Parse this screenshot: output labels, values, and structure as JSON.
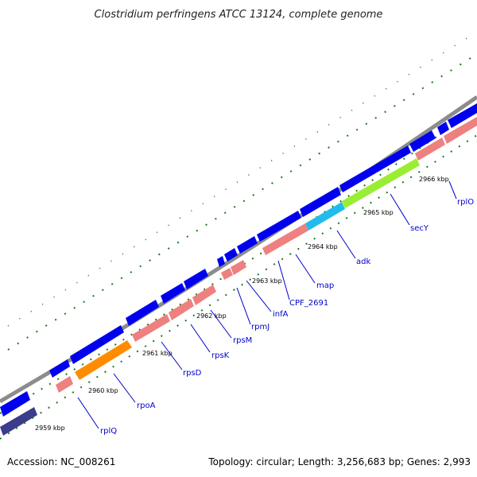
{
  "title": "Clostridium perfringens ATCC 13124, complete genome",
  "footer": {
    "accession": "Accession: NC_008261",
    "summary": "Topology: circular; Length: 3,256,683 bp; Genes: 2,993"
  },
  "tick_labels": [
    "2959 kbp",
    "2960 kbp",
    "2961 kbp",
    "2962 kbp",
    "2963 kbp",
    "2964 kbp",
    "2965 kbp",
    "2966 kbp"
  ],
  "gene_labels": [
    "rplQ",
    "rpoA",
    "rpsD",
    "rpsK",
    "rpsM",
    "rpmJ",
    "infA",
    "CPF_2691",
    "map",
    "adk",
    "secY",
    "rplO"
  ],
  "colors": {
    "backbone": "#8c8c8c",
    "cds_outer": "#0000ee",
    "rrna_pink": "#ee8080",
    "rpoA_orange": "#ff8c00",
    "adk_cyan": "#22bbee",
    "secY_green": "#99ee33",
    "dark_gene": "#3c3c8c",
    "tick_green": "#1a7a1a",
    "label_line": "#0000cc"
  }
}
